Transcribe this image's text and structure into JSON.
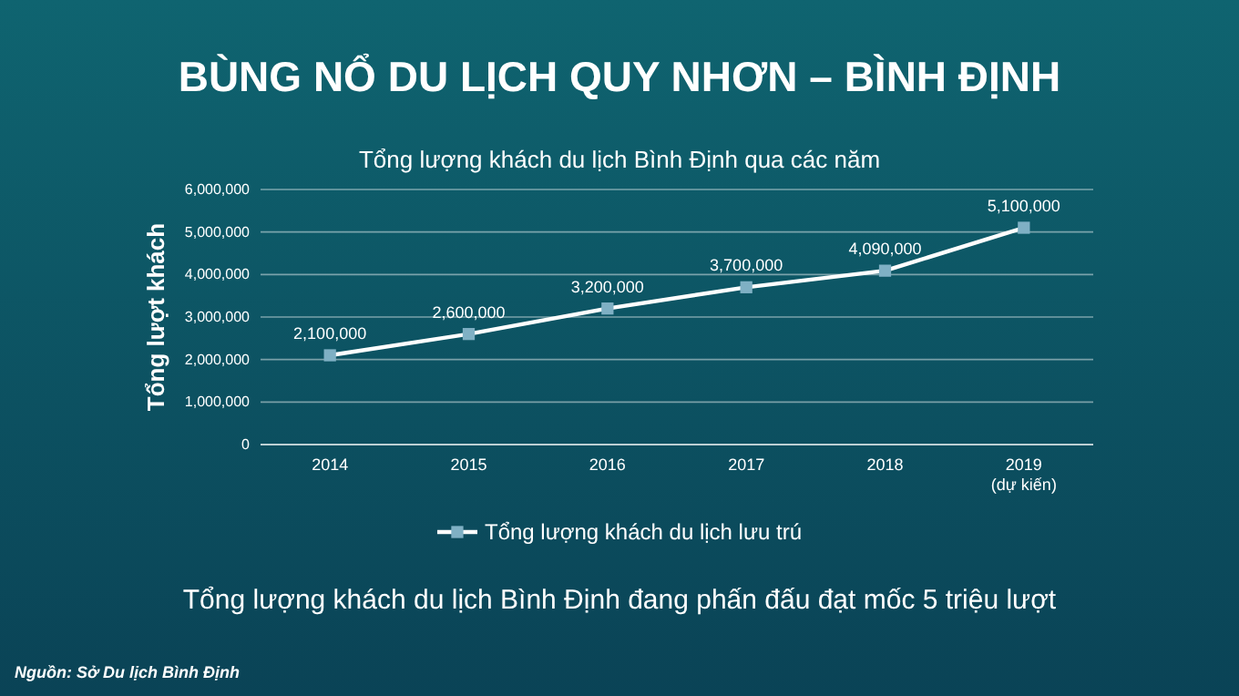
{
  "chart_data": {
    "type": "line",
    "title": "BÙNG NỔ DU LỊCH QUY NHƠN – BÌNH ĐỊNH",
    "subtitle": "Tổng lượng khách du lịch Bình Định qua các năm",
    "ylabel": "Tổng lượt khách",
    "categories": [
      "2014",
      "2015",
      "2016",
      "2017",
      "2018",
      "2019\n(dự kiến)"
    ],
    "series": [
      {
        "name": "Tổng lượng khách du lịch lưu trú",
        "color": "#ffffff",
        "values": [
          2100000,
          2600000,
          3200000,
          3700000,
          4090000,
          5100000
        ],
        "value_labels": [
          "2,100,000",
          "2,600,000",
          "3,200,000",
          "3,700,000",
          "4,090,000",
          "5,100,000"
        ]
      }
    ],
    "ylim": [
      0,
      6000000
    ],
    "yticks": [
      {
        "value": 0,
        "label": "0"
      },
      {
        "value": 1000000,
        "label": "1,000,000"
      },
      {
        "value": 2000000,
        "label": "2,000,000"
      },
      {
        "value": 3000000,
        "label": "3,000,000"
      },
      {
        "value": 4000000,
        "label": "4,000,000"
      },
      {
        "value": 5000000,
        "label": "5,000,000"
      },
      {
        "value": 6000000,
        "label": "6,000,000"
      }
    ],
    "grid": "y",
    "legend": "bottom",
    "marker": "square",
    "line_style": "solid",
    "annotations": [
      "Tổng lượng khách du lịch Bình Định đang phấn đấu đạt mốc 5 triệu lượt",
      "Nguồn: Sở Du lịch Bình Định"
    ]
  }
}
